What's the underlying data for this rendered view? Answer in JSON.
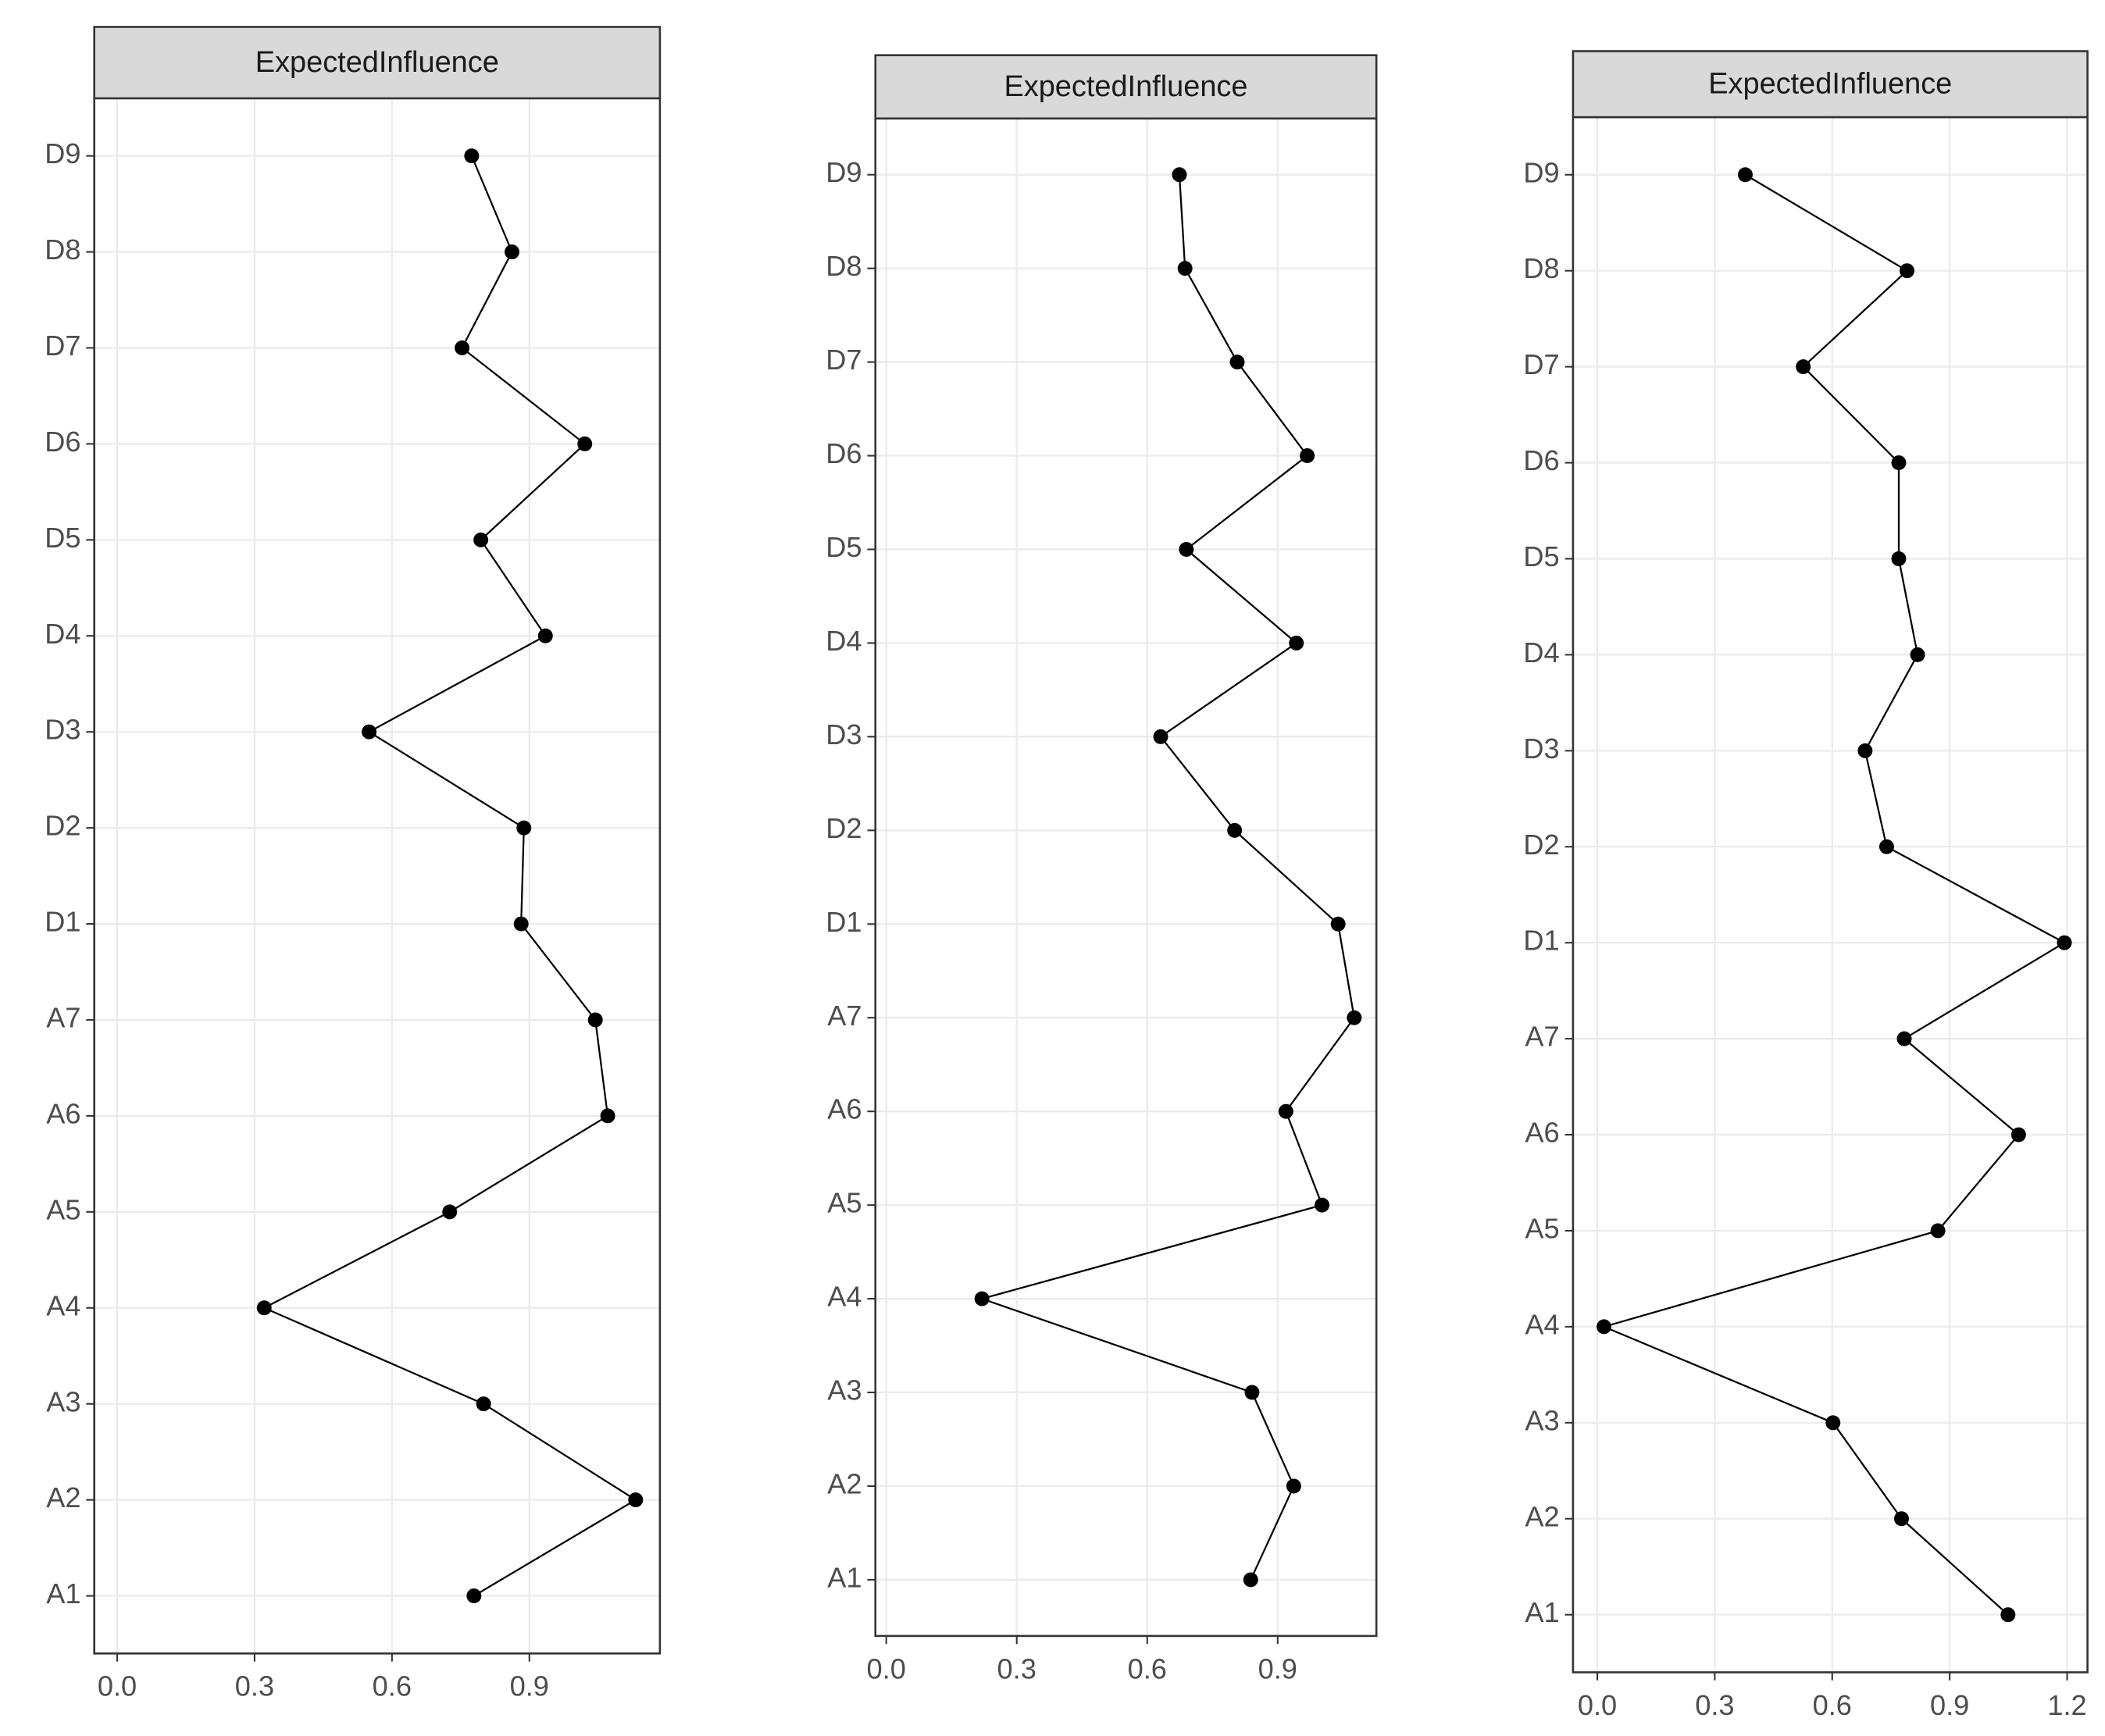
{
  "chart_data": [
    {
      "type": "line",
      "title": "ExpectedInfluence",
      "categories": [
        "A1",
        "A2",
        "A3",
        "A4",
        "A5",
        "A6",
        "A7",
        "D1",
        "D2",
        "D3",
        "D4",
        "D5",
        "D6",
        "D7",
        "D8",
        "D9"
      ],
      "values": [
        0.779,
        1.132,
        0.8,
        0.321,
        0.726,
        1.071,
        1.044,
        0.882,
        0.888,
        0.55,
        0.935,
        0.794,
        1.021,
        0.753,
        0.862,
        0.774
      ],
      "color": "#000000",
      "xlim": [
        -0.05,
        1.185
      ],
      "xticks": [
        {
          "value": 0,
          "label": "0.0"
        },
        0.3,
        0.6,
        0.9
      ],
      "grid": true
    },
    {
      "type": "line",
      "title": "ExpectedInfluence",
      "categories": [
        "A1",
        "A2",
        "A3",
        "A4",
        "A5",
        "A6",
        "A7",
        "D1",
        "D2",
        "D3",
        "D4",
        "D5",
        "D6",
        "D7",
        "D8",
        "D9"
      ],
      "values": [
        0.838,
        0.937,
        0.841,
        0.22,
        1.002,
        0.919,
        1.076,
        1.039,
        0.801,
        0.631,
        0.943,
        0.69,
        0.968,
        0.807,
        0.687,
        0.674
      ],
      "color": "#000000",
      "xlim": [
        -0.025,
        1.127
      ],
      "xticks": [
        {
          "value": 0,
          "label": "0.0"
        },
        0.3,
        0.6,
        0.9
      ],
      "grid": true
    },
    {
      "type": "line",
      "title": "ExpectedInfluence",
      "categories": [
        "A1",
        "A2",
        "A3",
        "A4",
        "A5",
        "A6",
        "A7",
        "D1",
        "D2",
        "D3",
        "D4",
        "D5",
        "D6",
        "D7",
        "D8",
        "D9"
      ],
      "values": [
        1.049,
        0.777,
        0.602,
        0.017,
        0.87,
        1.076,
        0.784,
        1.193,
        0.739,
        0.684,
        0.818,
        0.77,
        0.77,
        0.526,
        0.791,
        0.378
      ],
      "color": "#000000",
      "xlim": [
        -0.062,
        1.252
      ],
      "xticks": [
        {
          "value": 0,
          "label": "0.0"
        },
        0.3,
        0.6,
        0.9,
        1.2
      ],
      "grid": true
    }
  ]
}
